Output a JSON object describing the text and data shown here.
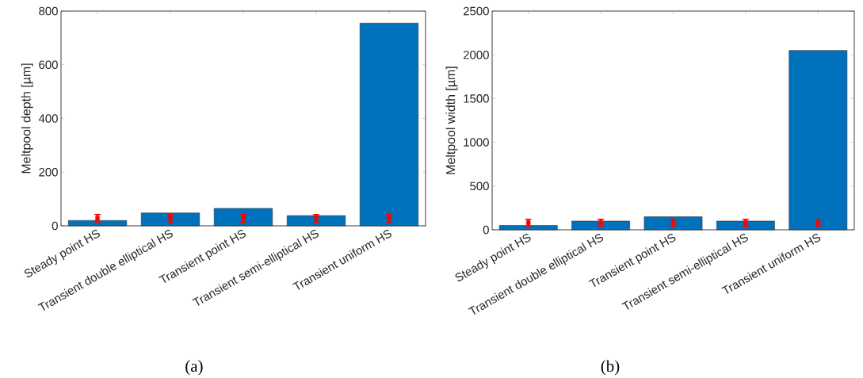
{
  "chart_data": [
    {
      "type": "bar",
      "ylabel": "Meltpool depth [µm]",
      "categories": [
        "Steady point HS",
        "Transient double elliptical HS",
        "Transient point HS",
        "Transient semi-elliptical HS",
        "Transient uniform HS"
      ],
      "series": [
        {
          "color": "#0072bd",
          "values": [
            20,
            48,
            65,
            38,
            755
          ]
        },
        {
          "type": "scatter",
          "color": "#ff0000",
          "x": [
            "Steady point HS",
            "Transient double elliptical HS",
            "Transient point HS",
            "Transient semi-elliptical HS",
            "Transient uniform HS"
          ],
          "values": [
            28,
            28,
            28,
            28,
            28
          ],
          "errors": [
            14,
            14,
            14,
            14,
            14
          ]
        }
      ],
      "marker": "square",
      "ylim": [
        0,
        800
      ],
      "yticks": [
        0,
        200,
        400,
        600,
        800
      ],
      "annotations": [
        "(a)"
      ]
    },
    {
      "type": "bar",
      "ylabel": "Meltpool width [µm]",
      "categories": [
        "Steady point HS",
        "Transient double elliptical HS",
        "Transient point HS",
        "Transient semi-elliptical HS",
        "Transient uniform HS"
      ],
      "series": [
        {
          "color": "#0072bd",
          "values": [
            50,
            100,
            150,
            100,
            2050
          ]
        },
        {
          "type": "scatter",
          "color": "#ff0000",
          "x": [
            "Steady point HS",
            "Transient double elliptical HS",
            "Transient point HS",
            "Transient semi-elliptical HS",
            "Transient uniform HS"
          ],
          "values": [
            80,
            80,
            80,
            80,
            80
          ],
          "errors": [
            40,
            40,
            40,
            40,
            40
          ]
        }
      ],
      "marker": "square",
      "ylim": [
        0,
        2500
      ],
      "yticks": [
        0,
        500,
        1000,
        1500,
        2000,
        2500
      ],
      "annotations": [
        "(b)"
      ]
    }
  ]
}
